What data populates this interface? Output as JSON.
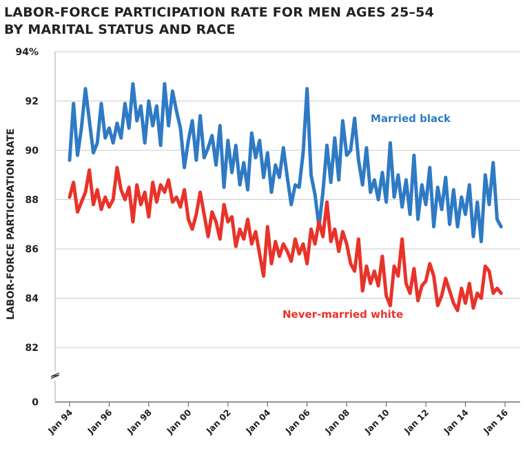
{
  "title_lines": [
    "LABOR-FORCE PARTICIPATION RATE FOR MEN AGES 25–54",
    "BY MARITAL STATUS AND RACE"
  ],
  "chart_data": {
    "type": "line",
    "title": "LABOR-FORCE PARTICIPATION RATE FOR MEN AGES 25–54 BY MARITAL STATUS AND RACE",
    "ylabel": "LABOR-FORCE PARTICIPATION RATE",
    "xlabel": "",
    "ylim": [
      82,
      94
    ],
    "y_axis_break": {
      "below": 82,
      "baseline": 0,
      "symbol": "≈"
    },
    "y_ticks": [
      0,
      82,
      84,
      86,
      88,
      90,
      92,
      94
    ],
    "y_tick_labels": [
      "0",
      "82",
      "84",
      "86",
      "88",
      "90",
      "92",
      "94%"
    ],
    "x_ticks": [
      1994,
      1996,
      1998,
      2000,
      2002,
      2004,
      2006,
      2008,
      2010,
      2012,
      2014,
      2016
    ],
    "x_tick_labels": [
      "Jan 94",
      "Jan 96",
      "Jan 98",
      "Jan 00",
      "Jan 02",
      "Jan 04",
      "Jan 06",
      "Jan 08",
      "Jan 10",
      "Jan 12",
      "Jan 14",
      "Jan 16"
    ],
    "grid": "horizontal",
    "legend": "inline labels",
    "series": [
      {
        "name": "Married black",
        "color": "#2f7ac4",
        "x": [
          1994.0,
          1994.2,
          1994.4,
          1994.6,
          1994.8,
          1995.0,
          1995.2,
          1995.4,
          1995.6,
          1995.8,
          1996.0,
          1996.2,
          1996.4,
          1996.6,
          1996.8,
          1997.0,
          1997.2,
          1997.4,
          1997.6,
          1997.8,
          1998.0,
          1998.2,
          1998.4,
          1998.6,
          1998.8,
          1999.0,
          1999.2,
          1999.4,
          1999.6,
          1999.8,
          2000.0,
          2000.2,
          2000.4,
          2000.6,
          2000.8,
          2001.0,
          2001.2,
          2001.4,
          2001.6,
          2001.8,
          2002.0,
          2002.2,
          2002.4,
          2002.6,
          2002.8,
          2003.0,
          2003.2,
          2003.4,
          2003.6,
          2003.8,
          2004.0,
          2004.2,
          2004.4,
          2004.6,
          2004.8,
          2005.0,
          2005.2,
          2005.4,
          2005.6,
          2005.8,
          2006.0,
          2006.2,
          2006.4,
          2006.6,
          2006.8,
          2007.0,
          2007.2,
          2007.4,
          2007.6,
          2007.8,
          2008.0,
          2008.2,
          2008.4,
          2008.6,
          2008.8,
          2009.0,
          2009.2,
          2009.4,
          2009.6,
          2009.8,
          2010.0,
          2010.2,
          2010.4,
          2010.6,
          2010.8,
          2011.0,
          2011.2,
          2011.4,
          2011.6,
          2011.8,
          2012.0,
          2012.2,
          2012.4,
          2012.6,
          2012.8,
          2013.0,
          2013.2,
          2013.4,
          2013.6,
          2013.8,
          2014.0,
          2014.2,
          2014.4,
          2014.6,
          2014.8,
          2015.0,
          2015.2,
          2015.4,
          2015.6,
          2015.8
        ],
        "values": [
          89.6,
          91.9,
          89.8,
          90.9,
          92.5,
          91.2,
          89.9,
          90.3,
          91.9,
          90.5,
          90.9,
          90.3,
          91.1,
          90.5,
          91.9,
          90.9,
          92.7,
          91.2,
          91.8,
          90.3,
          92.0,
          91.0,
          91.8,
          90.2,
          92.7,
          91.0,
          92.4,
          91.6,
          90.9,
          89.3,
          90.4,
          91.2,
          89.6,
          91.4,
          89.7,
          90.1,
          90.6,
          89.4,
          91.0,
          88.5,
          90.4,
          89.1,
          90.2,
          88.6,
          89.5,
          88.4,
          90.7,
          89.7,
          90.4,
          88.9,
          89.9,
          88.3,
          89.4,
          88.9,
          90.1,
          88.9,
          87.8,
          88.6,
          88.5,
          89.9,
          92.5,
          89.0,
          88.2,
          86.9,
          88.3,
          90.2,
          88.7,
          90.5,
          88.8,
          91.2,
          89.8,
          90.0,
          91.3,
          89.6,
          88.6,
          90.1,
          88.3,
          88.8,
          88.0,
          89.1,
          87.9,
          90.3,
          88.1,
          89.0,
          87.7,
          88.8,
          87.4,
          89.8,
          87.2,
          88.6,
          87.8,
          89.3,
          86.9,
          88.5,
          87.6,
          88.9,
          87.0,
          88.4,
          86.9,
          88.1,
          87.4,
          88.6,
          86.5,
          87.9,
          86.3,
          89.0,
          87.8,
          89.5,
          87.2,
          86.9
        ]
      },
      {
        "name": "Never-married white",
        "color": "#e8332a",
        "x": [
          1994.0,
          1994.2,
          1994.4,
          1994.6,
          1994.8,
          1995.0,
          1995.2,
          1995.4,
          1995.6,
          1995.8,
          1996.0,
          1996.2,
          1996.4,
          1996.6,
          1996.8,
          1997.0,
          1997.2,
          1997.4,
          1997.6,
          1997.8,
          1998.0,
          1998.2,
          1998.4,
          1998.6,
          1998.8,
          1999.0,
          1999.2,
          1999.4,
          1999.6,
          1999.8,
          2000.0,
          2000.2,
          2000.4,
          2000.6,
          2000.8,
          2001.0,
          2001.2,
          2001.4,
          2001.6,
          2001.8,
          2002.0,
          2002.2,
          2002.4,
          2002.6,
          2002.8,
          2003.0,
          2003.2,
          2003.4,
          2003.6,
          2003.8,
          2004.0,
          2004.2,
          2004.4,
          2004.6,
          2004.8,
          2005.0,
          2005.2,
          2005.4,
          2005.6,
          2005.8,
          2006.0,
          2006.2,
          2006.4,
          2006.6,
          2006.8,
          2007.0,
          2007.2,
          2007.4,
          2007.6,
          2007.8,
          2008.0,
          2008.2,
          2008.4,
          2008.6,
          2008.8,
          2009.0,
          2009.2,
          2009.4,
          2009.6,
          2009.8,
          2010.0,
          2010.2,
          2010.4,
          2010.6,
          2010.8,
          2011.0,
          2011.2,
          2011.4,
          2011.6,
          2011.8,
          2012.0,
          2012.2,
          2012.4,
          2012.6,
          2012.8,
          2013.0,
          2013.2,
          2013.4,
          2013.6,
          2013.8,
          2014.0,
          2014.2,
          2014.4,
          2014.6,
          2014.8,
          2015.0,
          2015.2,
          2015.4,
          2015.6,
          2015.8
        ],
        "values": [
          88.1,
          88.7,
          87.5,
          87.9,
          88.3,
          89.2,
          87.8,
          88.4,
          87.6,
          88.1,
          87.7,
          88.0,
          89.3,
          88.4,
          88.0,
          88.5,
          87.1,
          88.6,
          87.8,
          88.3,
          87.3,
          88.7,
          87.9,
          88.6,
          88.3,
          88.8,
          87.9,
          88.1,
          87.7,
          88.4,
          87.2,
          86.8,
          87.4,
          88.3,
          87.4,
          86.5,
          87.5,
          87.1,
          86.4,
          87.8,
          87.1,
          87.3,
          86.1,
          86.8,
          86.4,
          87.2,
          86.2,
          86.7,
          85.8,
          84.9,
          86.9,
          85.4,
          86.3,
          85.7,
          86.2,
          85.9,
          85.5,
          86.4,
          85.8,
          86.2,
          85.4,
          86.8,
          86.2,
          87.1,
          86.5,
          87.9,
          86.3,
          86.8,
          85.9,
          86.7,
          86.2,
          85.4,
          85.1,
          86.4,
          84.3,
          85.3,
          84.6,
          85.1,
          84.5,
          85.7,
          84.1,
          83.7,
          85.3,
          84.9,
          86.4,
          84.6,
          84.2,
          85.2,
          83.9,
          84.5,
          84.7,
          85.4,
          84.9,
          83.7,
          84.1,
          84.8,
          84.3,
          83.8,
          83.5,
          84.4,
          83.8,
          84.6,
          83.6,
          84.2,
          84.0,
          85.3,
          85.1,
          84.2,
          84.4,
          84.2
        ]
      }
    ],
    "annotations": [
      "Married black",
      "Never-married white"
    ]
  }
}
